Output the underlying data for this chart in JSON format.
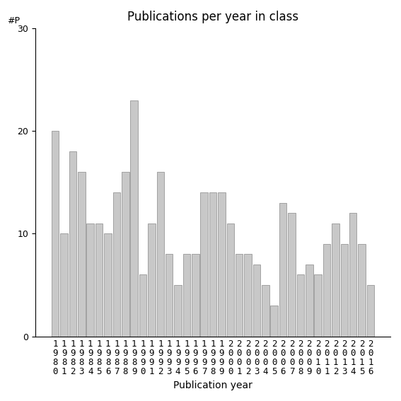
{
  "years": [
    1980,
    1981,
    1982,
    1983,
    1984,
    1985,
    1986,
    1987,
    1988,
    1989,
    1990,
    1991,
    1992,
    1993,
    1994,
    1995,
    1996,
    1997,
    1998,
    1999,
    2000,
    2001,
    2002,
    2003,
    2004,
    2005,
    2006,
    2007,
    2008,
    2009,
    2010,
    2011,
    2012,
    2013,
    2014,
    2015,
    2016
  ],
  "values": [
    20,
    10,
    18,
    16,
    11,
    11,
    10,
    14,
    16,
    23,
    6,
    11,
    16,
    8,
    5,
    8,
    8,
    14,
    14,
    14,
    11,
    8,
    8,
    7,
    5,
    3,
    13,
    12,
    6,
    7,
    6,
    9,
    11,
    9,
    12,
    9,
    5
  ],
  "bar_color": "#c8c8c8",
  "bar_edgecolor": "#888888",
  "title": "Publications per year in class",
  "xlabel": "Publication year",
  "ylabel": "#P",
  "ylim": [
    0,
    30
  ],
  "yticks": [
    0,
    10,
    20,
    30
  ],
  "background_color": "#ffffff",
  "title_fontsize": 12,
  "label_fontsize": 10,
  "tick_fontsize": 9
}
